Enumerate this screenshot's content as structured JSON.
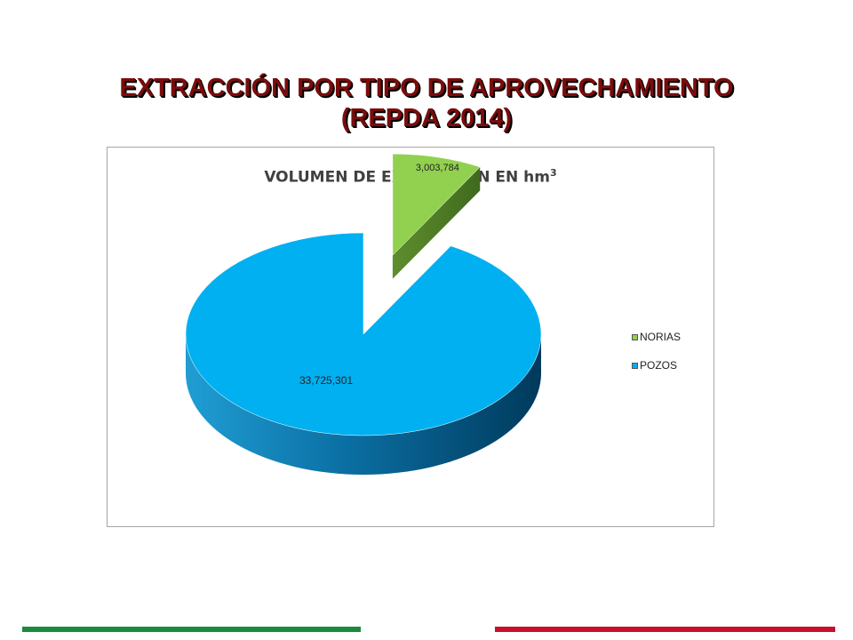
{
  "slide": {
    "title_line1": "EXTRACCIÓN POR TIPO DE APROVECHAMIENTO",
    "title_line2": "(REPDA 2014)"
  },
  "colors": {
    "title_text": "#7a0c0c",
    "norias": "#92d050",
    "pozos": "#00b0f0",
    "footer_green": "#1a8a3c",
    "footer_red": "#c8102e"
  },
  "chart_data": {
    "type": "pie",
    "style": "3d-exploded",
    "title": "VOLUMEN DE EXTRACCIÓN EN hm",
    "title_superscript": "3",
    "labels": [
      "NORIAS",
      "POZOS"
    ],
    "values": [
      3003784,
      33725301
    ],
    "data_labels": [
      "3,003,784",
      "33,725,301"
    ],
    "legend_position": "right"
  }
}
